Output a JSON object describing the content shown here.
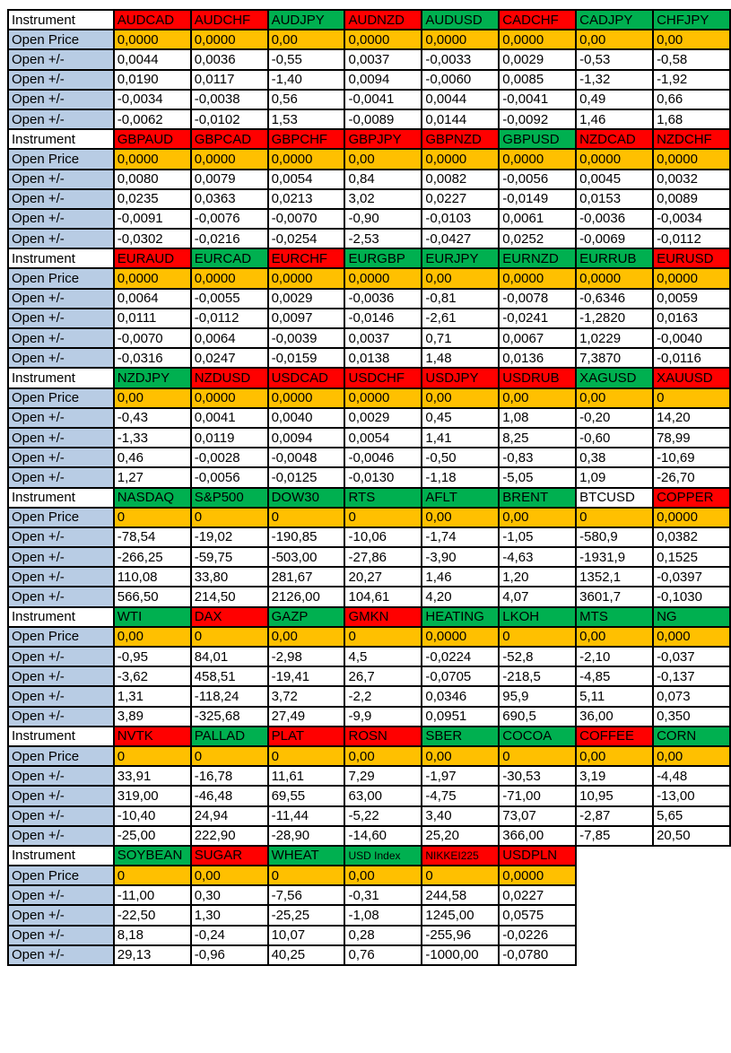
{
  "table": {
    "row_labels": {
      "instrument": "Instrument",
      "open_price": "Open Price",
      "open_delta": "Open +/-"
    },
    "colors": {
      "red": "#ff0000",
      "green": "#00b050",
      "orange": "#ffc000",
      "label_blue": "#b8cce4",
      "white": "#ffffff",
      "border": "#000000"
    },
    "blocks": [
      {
        "instruments": [
          {
            "name": "AUDCAD",
            "color": "red",
            "open_price": "0,0000",
            "deltas": [
              "0,0044",
              "0,0190",
              "-0,0034",
              "-0,0062"
            ]
          },
          {
            "name": "AUDCHF",
            "color": "red",
            "open_price": "0,0000",
            "deltas": [
              "0,0036",
              "0,0117",
              "-0,0038",
              "-0,0102"
            ]
          },
          {
            "name": "AUDJPY",
            "color": "green",
            "open_price": "0,00",
            "deltas": [
              "-0,55",
              "-1,40",
              "0,56",
              "1,53"
            ]
          },
          {
            "name": "AUDNZD",
            "color": "red",
            "open_price": "0,0000",
            "deltas": [
              "0,0037",
              "0,0094",
              "-0,0041",
              "-0,0089"
            ]
          },
          {
            "name": "AUDUSD",
            "color": "green",
            "open_price": "0,0000",
            "deltas": [
              "-0,0033",
              "-0,0060",
              "0,0044",
              "0,0144"
            ]
          },
          {
            "name": "CADCHF",
            "color": "red",
            "open_price": "0,0000",
            "deltas": [
              "0,0029",
              "0,0085",
              "-0,0041",
              "-0,0092"
            ]
          },
          {
            "name": "CADJPY",
            "color": "green",
            "open_price": "0,00",
            "deltas": [
              "-0,53",
              "-1,32",
              "0,49",
              "1,46"
            ]
          },
          {
            "name": "CHFJPY",
            "color": "green",
            "open_price": "0,00",
            "deltas": [
              "-0,58",
              "-1,92",
              "0,66",
              "1,68"
            ]
          }
        ]
      },
      {
        "instruments": [
          {
            "name": "GBPAUD",
            "color": "red",
            "open_price": "0,0000",
            "deltas": [
              "0,0080",
              "0,0235",
              "-0,0091",
              "-0,0302"
            ]
          },
          {
            "name": "GBPCAD",
            "color": "red",
            "open_price": "0,0000",
            "deltas": [
              "0,0079",
              "0,0363",
              "-0,0076",
              "-0,0216"
            ]
          },
          {
            "name": "GBPCHF",
            "color": "red",
            "open_price": "0,0000",
            "deltas": [
              "0,0054",
              "0,0213",
              "-0,0070",
              "-0,0254"
            ]
          },
          {
            "name": "GBPJPY",
            "color": "red",
            "open_price": "0,00",
            "deltas": [
              "0,84",
              "3,02",
              "-0,90",
              "-2,53"
            ]
          },
          {
            "name": "GBPNZD",
            "color": "red",
            "open_price": "0,0000",
            "deltas": [
              "0,0082",
              "0,0227",
              "-0,0103",
              "-0,0427"
            ]
          },
          {
            "name": "GBPUSD",
            "color": "green",
            "open_price": "0,0000",
            "deltas": [
              "-0,0056",
              "-0,0149",
              "0,0061",
              "0,0252"
            ]
          },
          {
            "name": "NZDCAD",
            "color": "red",
            "open_price": "0,0000",
            "deltas": [
              "0,0045",
              "0,0153",
              "-0,0036",
              "-0,0069"
            ]
          },
          {
            "name": "NZDCHF",
            "color": "red",
            "open_price": "0,0000",
            "deltas": [
              "0,0032",
              "0,0089",
              "-0,0034",
              "-0,0112"
            ]
          }
        ]
      },
      {
        "instruments": [
          {
            "name": "EURAUD",
            "color": "red",
            "open_price": "0,0000",
            "deltas": [
              "0,0064",
              "0,0111",
              "-0,0070",
              "-0,0316"
            ]
          },
          {
            "name": "EURCAD",
            "color": "green",
            "open_price": "0,0000",
            "deltas": [
              "-0,0055",
              "-0,0112",
              "0,0064",
              "0,0247"
            ]
          },
          {
            "name": "EURCHF",
            "color": "red",
            "open_price": "0,0000",
            "deltas": [
              "0,0029",
              "0,0097",
              "-0,0039",
              "-0,0159"
            ]
          },
          {
            "name": "EURGBP",
            "color": "green",
            "open_price": "0,0000",
            "deltas": [
              "-0,0036",
              "-0,0146",
              "0,0037",
              "0,0138"
            ]
          },
          {
            "name": "EURJPY",
            "color": "green",
            "open_price": "0,00",
            "deltas": [
              "-0,81",
              "-2,61",
              "0,71",
              "1,48"
            ]
          },
          {
            "name": "EURNZD",
            "color": "green",
            "open_price": "0,0000",
            "deltas": [
              "-0,0078",
              "-0,0241",
              "0,0067",
              "0,0136"
            ]
          },
          {
            "name": "EURRUB",
            "color": "green",
            "open_price": "0,0000",
            "deltas": [
              "-0,6346",
              "-1,2820",
              "1,0229",
              "7,3870"
            ]
          },
          {
            "name": "EURUSD",
            "color": "red",
            "open_price": "0,0000",
            "deltas": [
              "0,0059",
              "0,0163",
              "-0,0040",
              "-0,0116"
            ]
          }
        ]
      },
      {
        "instruments": [
          {
            "name": "NZDJPY",
            "color": "green",
            "open_price": "0,00",
            "deltas": [
              "-0,43",
              "-1,33",
              "0,46",
              "1,27"
            ]
          },
          {
            "name": "NZDUSD",
            "color": "red",
            "open_price": "0,0000",
            "deltas": [
              "0,0041",
              "0,0119",
              "-0,0028",
              "-0,0056"
            ]
          },
          {
            "name": "USDCAD",
            "color": "red",
            "open_price": "0,0000",
            "deltas": [
              "0,0040",
              "0,0094",
              "-0,0048",
              "-0,0125"
            ]
          },
          {
            "name": "USDCHF",
            "color": "red",
            "open_price": "0,0000",
            "deltas": [
              "0,0029",
              "0,0054",
              "-0,0046",
              "-0,0130"
            ]
          },
          {
            "name": "USDJPY",
            "color": "red",
            "open_price": "0,00",
            "deltas": [
              "0,45",
              "1,41",
              "-0,50",
              "-1,18"
            ]
          },
          {
            "name": "USDRUB",
            "color": "red",
            "open_price": "0,00",
            "deltas": [
              "1,08",
              "8,25",
              "-0,83",
              "-5,05"
            ]
          },
          {
            "name": "XAGUSD",
            "color": "green",
            "open_price": "0,00",
            "deltas": [
              "-0,20",
              "-0,60",
              "0,38",
              "1,09"
            ]
          },
          {
            "name": "XAUUSD",
            "color": "red",
            "open_price": "0",
            "deltas": [
              "14,20",
              "78,99",
              "-10,69",
              "-26,70"
            ]
          }
        ]
      },
      {
        "instruments": [
          {
            "name": "NASDAQ",
            "color": "green",
            "open_price": "0",
            "deltas": [
              "-78,54",
              "-266,25",
              "110,08",
              "566,50"
            ]
          },
          {
            "name": "S&P500",
            "color": "green",
            "open_price": "0",
            "deltas": [
              "-19,02",
              "-59,75",
              "33,80",
              "214,50"
            ]
          },
          {
            "name": "DOW30",
            "color": "green",
            "open_price": "0",
            "deltas": [
              "-190,85",
              "-503,00",
              "281,67",
              "2126,00"
            ]
          },
          {
            "name": "RTS",
            "color": "green",
            "open_price": "0",
            "deltas": [
              "-10,06",
              "-27,86",
              "20,27",
              "104,61"
            ]
          },
          {
            "name": "AFLT",
            "color": "green",
            "open_price": "0,00",
            "deltas": [
              "-1,74",
              "-3,90",
              "1,46",
              "4,20"
            ]
          },
          {
            "name": "BRENT",
            "color": "green",
            "open_price": "0,00",
            "deltas": [
              "-1,05",
              "-4,63",
              "1,20",
              "4,07"
            ]
          },
          {
            "name": "BTCUSD",
            "color": "white",
            "open_price": "0",
            "deltas": [
              "-580,9",
              "-1931,9",
              "1352,1",
              "3601,7"
            ]
          },
          {
            "name": "COPPER",
            "color": "red",
            "open_price": "0,0000",
            "deltas": [
              "0,0382",
              "0,1525",
              "-0,0397",
              "-0,1030"
            ]
          }
        ]
      },
      {
        "instruments": [
          {
            "name": "WTI",
            "color": "green",
            "open_price": "0,00",
            "deltas": [
              "-0,95",
              "-3,62",
              "1,31",
              "3,89"
            ]
          },
          {
            "name": "DAX",
            "color": "red",
            "open_price": "0",
            "deltas": [
              "84,01",
              "458,51",
              "-118,24",
              "-325,68"
            ]
          },
          {
            "name": "GAZP",
            "color": "green",
            "open_price": "0,00",
            "deltas": [
              "-2,98",
              "-19,41",
              "3,72",
              "27,49"
            ]
          },
          {
            "name": "GMKN",
            "color": "red",
            "open_price": "0",
            "deltas": [
              "4,5",
              "26,7",
              "-2,2",
              "-9,9"
            ]
          },
          {
            "name": "HEATING",
            "color": "green",
            "open_price": "0,0000",
            "deltas": [
              "-0,0224",
              "-0,0705",
              "0,0346",
              "0,0951"
            ]
          },
          {
            "name": "LKOH",
            "color": "green",
            "open_price": "0",
            "deltas": [
              "-52,8",
              "-218,5",
              "95,9",
              "690,5"
            ]
          },
          {
            "name": "MTS",
            "color": "green",
            "open_price": "0,00",
            "deltas": [
              "-2,10",
              "-4,85",
              "5,11",
              "36,00"
            ]
          },
          {
            "name": "NG",
            "color": "green",
            "open_price": "0,000",
            "deltas": [
              "-0,037",
              "-0,137",
              "0,073",
              "0,350"
            ]
          }
        ]
      },
      {
        "instruments": [
          {
            "name": "NVTK",
            "color": "red",
            "open_price": "0",
            "deltas": [
              "33,91",
              "319,00",
              "-10,40",
              "-25,00"
            ]
          },
          {
            "name": "PALLAD",
            "color": "green",
            "open_price": "0",
            "deltas": [
              "-16,78",
              "-46,48",
              "24,94",
              "222,90"
            ]
          },
          {
            "name": "PLAT",
            "color": "red",
            "open_price": "0",
            "deltas": [
              "11,61",
              "69,55",
              "-11,44",
              "-28,90"
            ]
          },
          {
            "name": "ROSN",
            "color": "red",
            "open_price": "0,00",
            "deltas": [
              "7,29",
              "63,00",
              "-5,22",
              "-14,60"
            ]
          },
          {
            "name": "SBER",
            "color": "green",
            "open_price": "0,00",
            "deltas": [
              "-1,97",
              "-4,75",
              "3,40",
              "25,20"
            ]
          },
          {
            "name": "COCOA",
            "color": "green",
            "open_price": "0",
            "deltas": [
              "-30,53",
              "-71,00",
              "73,07",
              "366,00"
            ]
          },
          {
            "name": "COFFEE",
            "color": "red",
            "open_price": "0,00",
            "deltas": [
              "3,19",
              "10,95",
              "-2,87",
              "-7,85"
            ]
          },
          {
            "name": "CORN",
            "color": "green",
            "open_price": "0,00",
            "deltas": [
              "-4,48",
              "-13,00",
              "5,65",
              "20,50"
            ]
          }
        ]
      },
      {
        "instruments": [
          {
            "name": "SOYBEAN",
            "color": "green",
            "open_price": "0",
            "deltas": [
              "-11,00",
              "-22,50",
              "8,18",
              "29,13"
            ]
          },
          {
            "name": "SUGAR",
            "color": "red",
            "open_price": "0,00",
            "deltas": [
              "0,30",
              "1,30",
              "-0,24",
              "-0,96"
            ]
          },
          {
            "name": "WHEAT",
            "color": "green",
            "open_price": "0",
            "deltas": [
              "-7,56",
              "-25,25",
              "10,07",
              "40,25"
            ]
          },
          {
            "name": "USD Index",
            "color": "green",
            "small": true,
            "open_price": "0,00",
            "deltas": [
              "-0,31",
              "-1,08",
              "0,28",
              "0,76"
            ]
          },
          {
            "name": "NIKKEI225",
            "color": "red",
            "small": true,
            "open_price": "0",
            "deltas": [
              "244,58",
              "1245,00",
              "-255,96",
              "-1000,00"
            ]
          },
          {
            "name": "USDPLN",
            "color": "red",
            "open_price": "0,0000",
            "deltas": [
              "0,0227",
              "0,0575",
              "-0,0226",
              "-0,0780"
            ]
          }
        ]
      }
    ]
  }
}
